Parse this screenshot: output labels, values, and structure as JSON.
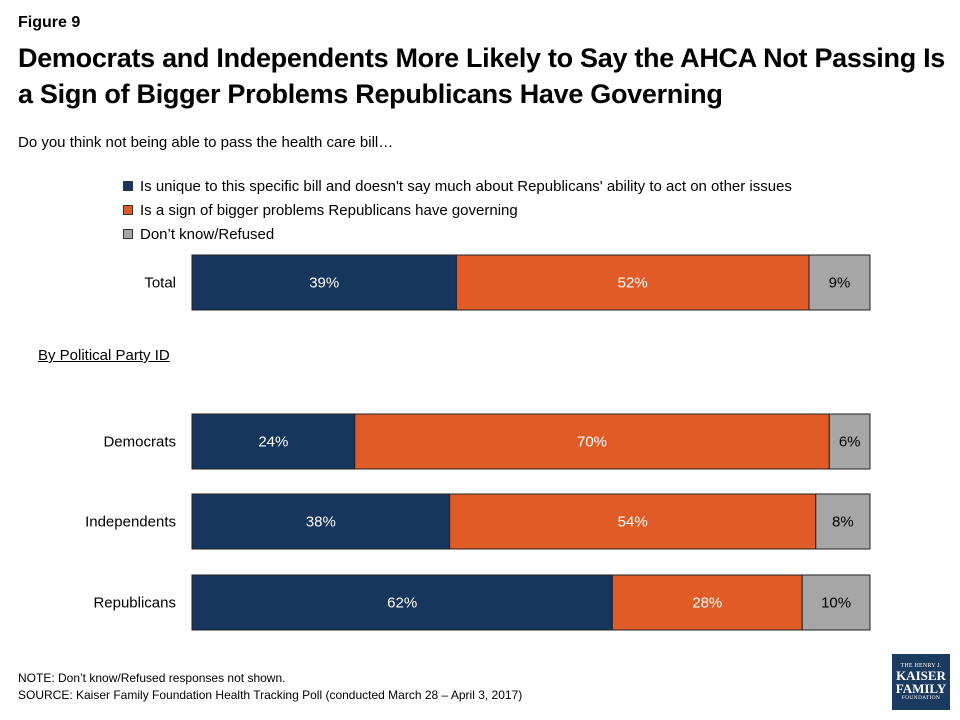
{
  "figure_label": "Figure 9",
  "title": "Democrats and Independents More Likely to Say the AHCA Not Passing Is a Sign of Bigger Problems Republicans Have Governing",
  "subtitle": "Do you think not being able to pass the health care bill…",
  "group_label": "By Political Party ID",
  "note": "NOTE: Don’t know/Refused responses not shown.",
  "source": "SOURCE: Kaiser Family Foundation Health Tracking Poll (conducted March 28 – April 3, 2017)",
  "logo": {
    "line1": "THE HENRY J.",
    "line2": "KAISER",
    "line3": "FAMILY",
    "line4": "FOUNDATION"
  },
  "chart_data": {
    "type": "bar",
    "orientation": "horizontal",
    "stacked": true,
    "categories": [
      "Total",
      "Democrats",
      "Independents",
      "Republicans"
    ],
    "series": [
      {
        "name": "Is unique to this specific bill and doesn't say much about Republicans' ability to act on other issues",
        "values": [
          39,
          24,
          38,
          62
        ],
        "labels": [
          "39%",
          "24%",
          "38%",
          "62%"
        ],
        "color": "#17365d"
      },
      {
        "name": "Is a sign of bigger problems Republicans have governing",
        "values": [
          52,
          70,
          54,
          28
        ],
        "labels": [
          "52%",
          "70%",
          "54%",
          "28%"
        ],
        "color": "#e05b26"
      },
      {
        "name": "Don’t know/Refused",
        "values": [
          9,
          6,
          8,
          10
        ],
        "labels": [
          "9%",
          "6%",
          "8%",
          "10%"
        ],
        "color": "#a6a6a6"
      }
    ],
    "xlim": [
      0,
      100
    ],
    "legend_position": "top",
    "grid": false
  }
}
